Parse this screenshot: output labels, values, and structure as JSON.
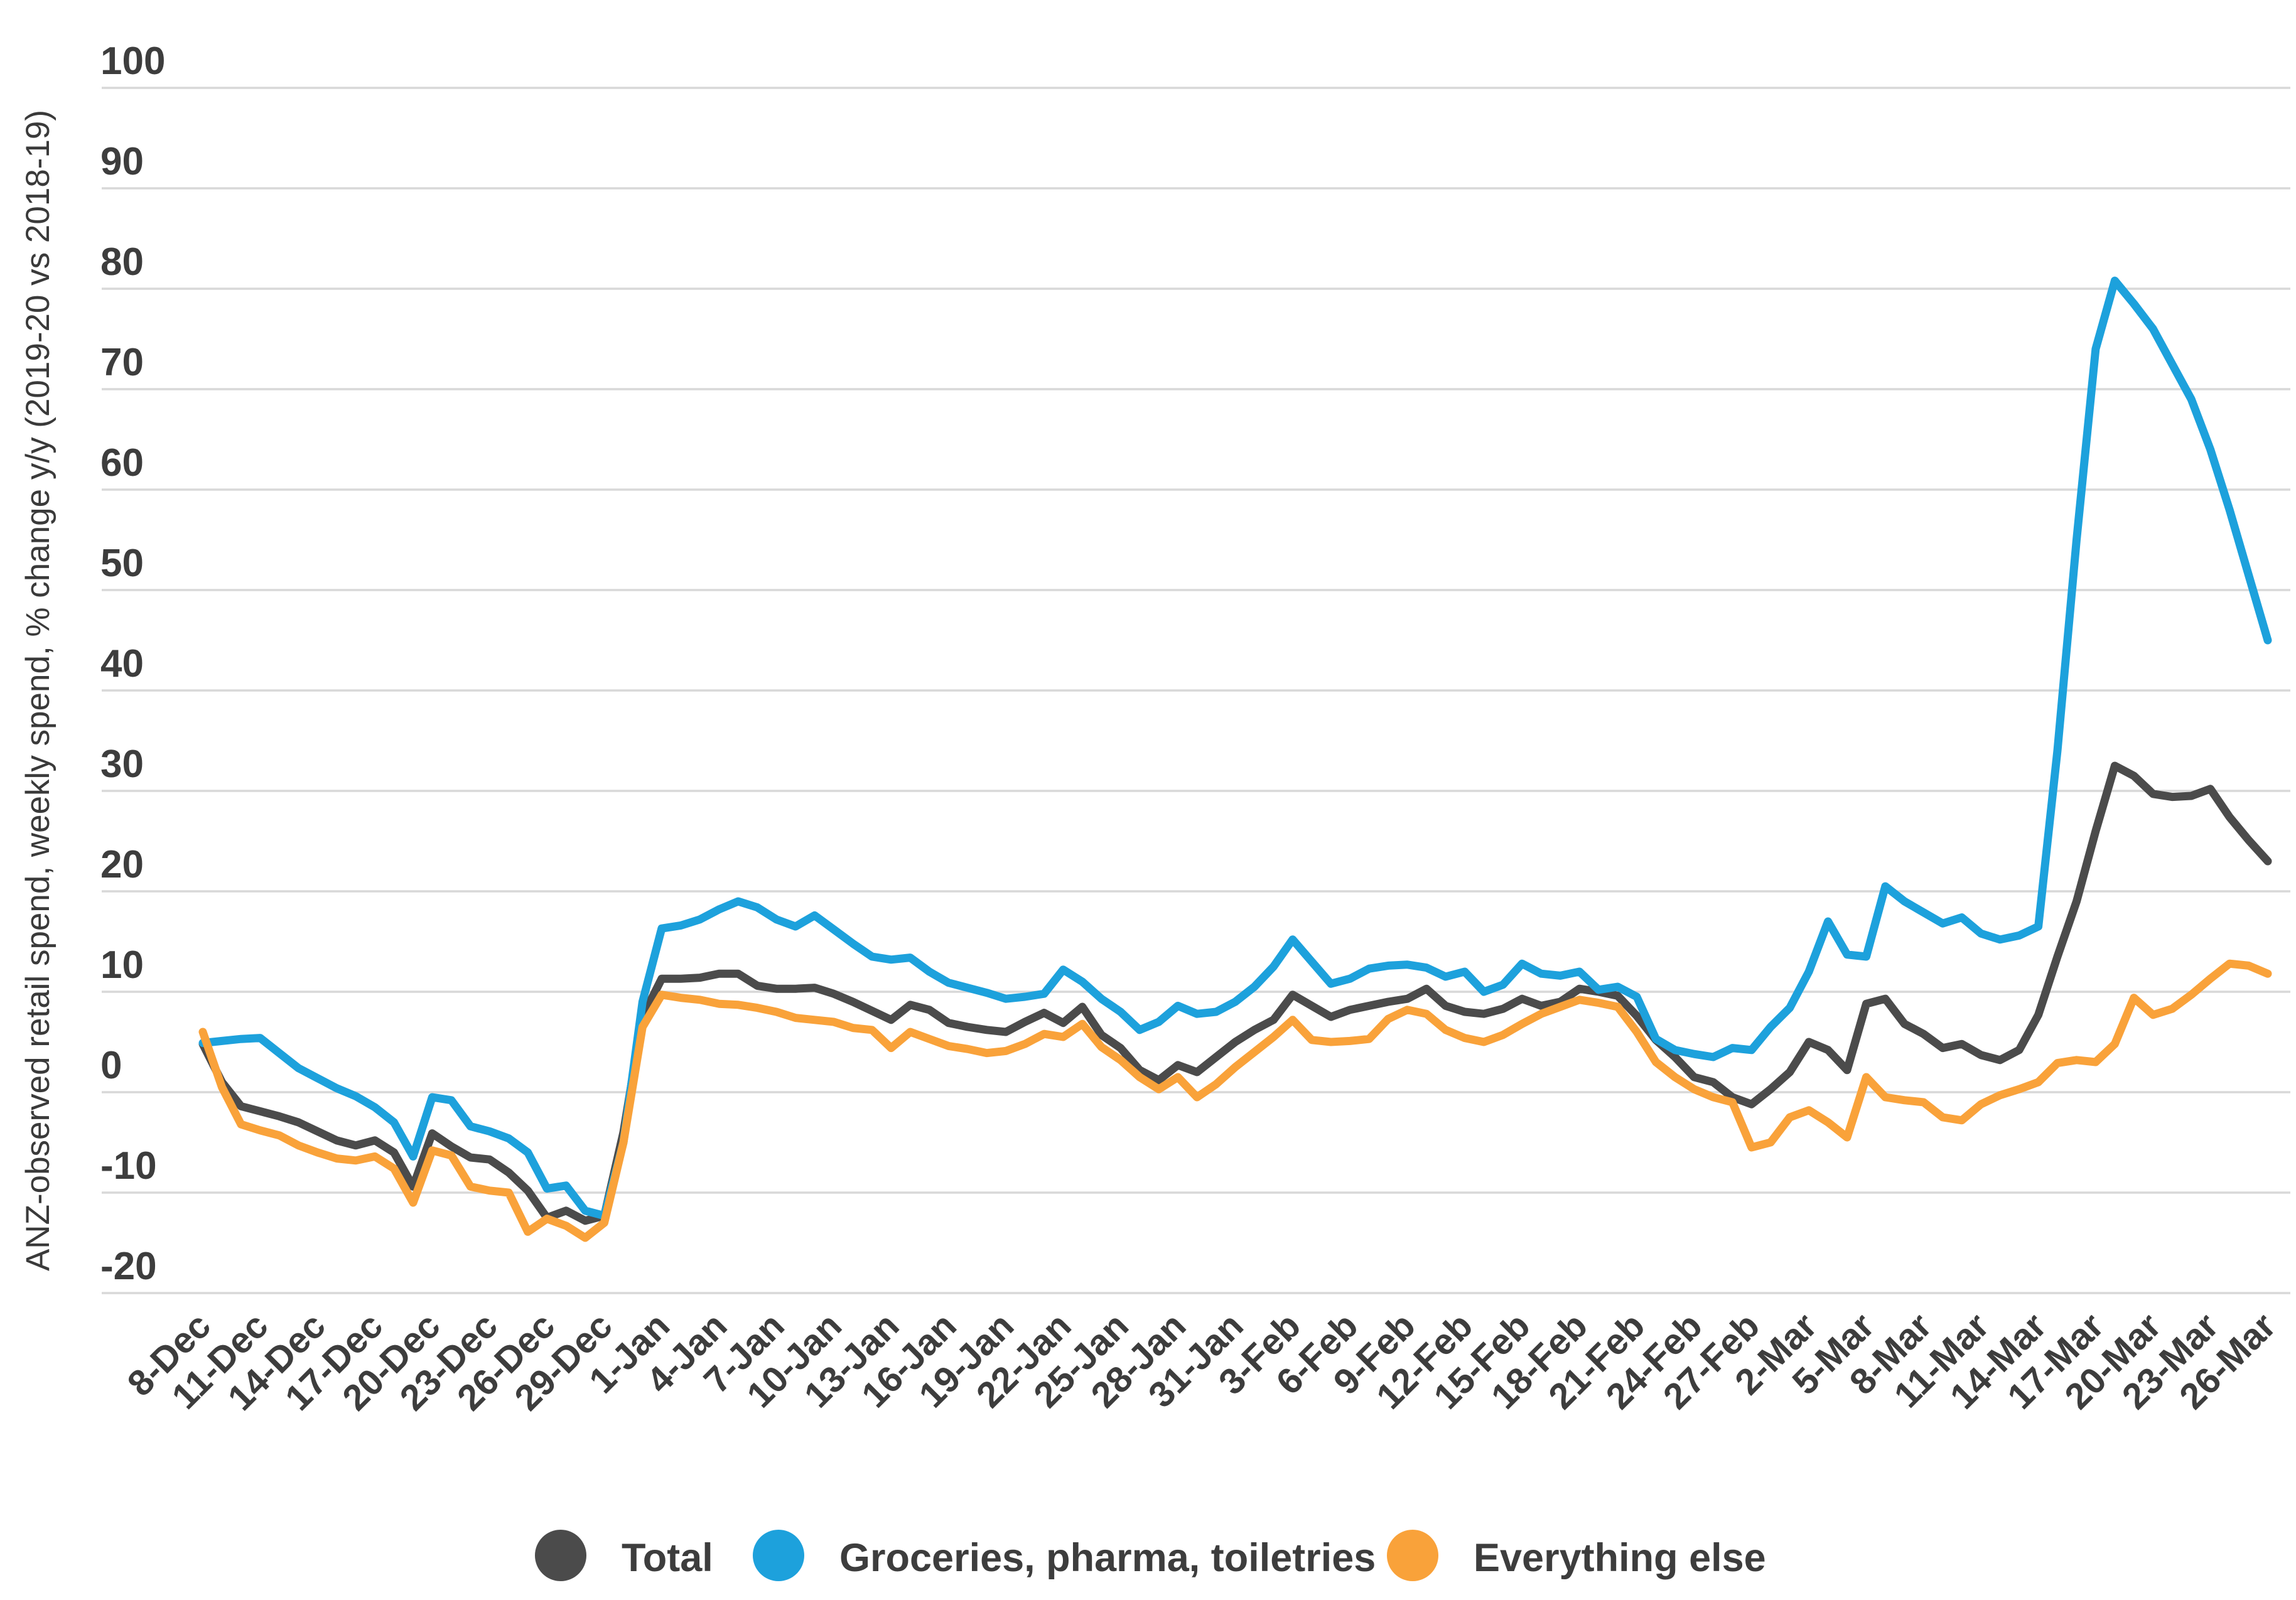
{
  "chart_data": {
    "type": "line",
    "title": "",
    "xlabel": "",
    "ylabel": "ANZ-observed retail spend, weekly spend, % change y/y (2019-20 vs 2018-19)",
    "ylim": [
      -20,
      100
    ],
    "yticks": [
      100,
      90,
      80,
      70,
      60,
      50,
      40,
      30,
      20,
      10,
      0,
      -10,
      -20
    ],
    "grid": "horizontal",
    "legend_position": "bottom",
    "x_tick_labels": [
      "8-Dec",
      "11-Dec",
      "14-Dec",
      "17-Dec",
      "20-Dec",
      "23-Dec",
      "26-Dec",
      "29-Dec",
      "1-Jan",
      "4-Jan",
      "7-Jan",
      "10-Jan",
      "13-Jan",
      "16-Jan",
      "19-Jan",
      "22-Jan",
      "25-Jan",
      "28-Jan",
      "31-Jan",
      "3-Feb",
      "6-Feb",
      "9-Feb",
      "12-Feb",
      "15-Feb",
      "18-Feb",
      "21-Feb",
      "24-Feb",
      "27-Feb",
      "2-Mar",
      "5-Mar",
      "8-Mar",
      "11-Mar",
      "14-Mar",
      "17-Mar",
      "20-Mar",
      "23-Mar",
      "26-Mar"
    ],
    "points_per_tick": 3,
    "x_resolution": "daily",
    "colors": {
      "text": "#3d3d3d",
      "grid": "#d8d8d8",
      "background": "#ffffff"
    },
    "series": [
      {
        "name": "Total",
        "color": "#4b4b4b",
        "values": [
          4.8,
          1.0,
          -1.4,
          -1.9,
          -2.4,
          -3,
          -3.9,
          -4.8,
          -5.3,
          -4.8,
          -6,
          -9.4,
          -4.1,
          -5.4,
          -6.5,
          -6.7,
          -8,
          -9.8,
          -12.5,
          -11.8,
          -12.8,
          -12.3,
          -4,
          7.5,
          11.3,
          11.3,
          11.4,
          11.8,
          11.8,
          10.6,
          10.3,
          10.3,
          10.4,
          9.8,
          9,
          8.1,
          7.2,
          8.7,
          8.2,
          6.9,
          6.5,
          6.2,
          6,
          7,
          7.9,
          6.9,
          8.5,
          5.7,
          4.4,
          2.2,
          1.2,
          2.7,
          2,
          3.5,
          5,
          6.2,
          7.2,
          9.7,
          8.6,
          7.5,
          8.2,
          8.6,
          9,
          9.3,
          10.3,
          8.6,
          8,
          7.8,
          8.3,
          9.3,
          8.6,
          9,
          10.3,
          10,
          9.6,
          7.6,
          5.2,
          3.5,
          1.5,
          1,
          -0.5,
          -1.2,
          0.3,
          2,
          5,
          4.2,
          2.2,
          8.8,
          9.3,
          6.8,
          5.8,
          4.4,
          4.8,
          3.7,
          3.2,
          4.2,
          7.7,
          13.5,
          19,
          26,
          32.5,
          31.5,
          29.7,
          29.4,
          29.5,
          30.2,
          27.4,
          25.1,
          23
        ]
      },
      {
        "name": "Groceries, pharma, toiletries",
        "color": "#1da1dc",
        "values": [
          4.9,
          5.1,
          5.3,
          5.4,
          3.9,
          2.4,
          1.4,
          0.4,
          -0.4,
          -1.5,
          -3,
          -6.4,
          -0.5,
          -0.8,
          -3.4,
          -3.9,
          -4.6,
          -6,
          -9.6,
          -9.3,
          -11.8,
          -12.3,
          -5,
          9,
          16.3,
          16.6,
          17.2,
          18.2,
          19,
          18.4,
          17.2,
          16.5,
          17.6,
          16.2,
          14.8,
          13.5,
          13.2,
          13.4,
          12,
          10.9,
          10.4,
          9.9,
          9.3,
          9.5,
          9.8,
          12.2,
          11,
          9.3,
          8,
          6.2,
          7,
          8.6,
          7.8,
          8,
          9,
          10.5,
          12.5,
          15.2,
          13,
          10.8,
          11.3,
          12.3,
          12.6,
          12.7,
          12.4,
          11.5,
          12,
          10,
          10.7,
          12.8,
          11.8,
          11.6,
          12,
          10.2,
          10.5,
          9.5,
          5.3,
          4.2,
          3.8,
          3.5,
          4.4,
          4.2,
          6.5,
          8.4,
          12,
          17,
          13.7,
          13.5,
          20.5,
          19,
          17.9,
          16.8,
          17.4,
          15.8,
          15.2,
          15.6,
          16.5,
          34,
          55,
          74,
          80.8,
          78.5,
          76,
          72.5,
          69,
          64,
          58,
          51.5,
          45
        ]
      },
      {
        "name": "Everything else",
        "color": "#f9a23a",
        "values": [
          6,
          0.5,
          -3.2,
          -3.8,
          -4.3,
          -5.3,
          -6,
          -6.6,
          -6.8,
          -6.4,
          -7.6,
          -11,
          -5.8,
          -6.3,
          -9.4,
          -9.8,
          -10,
          -13.9,
          -12.6,
          -13.3,
          -14.5,
          -13,
          -5,
          6.5,
          9.7,
          9.4,
          9.2,
          8.8,
          8.7,
          8.4,
          8,
          7.4,
          7.2,
          7,
          6.4,
          6.2,
          4.4,
          6,
          5.3,
          4.6,
          4.3,
          3.9,
          4.1,
          4.8,
          5.8,
          5.5,
          6.8,
          4.5,
          3.2,
          1.5,
          0.3,
          1.5,
          -0.5,
          0.8,
          2.5,
          4,
          5.5,
          7.2,
          5.2,
          5,
          5.1,
          5.3,
          7.3,
          8.2,
          7.8,
          6.2,
          5.4,
          5,
          5.7,
          6.8,
          7.8,
          8.5,
          9.2,
          8.9,
          8.5,
          6,
          3,
          1.5,
          0.3,
          -0.5,
          -1,
          -5.5,
          -5,
          -2.5,
          -1.8,
          -3,
          -4.5,
          1.5,
          -0.5,
          -0.8,
          -1,
          -2.5,
          -2.8,
          -1.2,
          -0.3,
          0.3,
          1,
          2.9,
          3.2,
          3,
          4.8,
          9.4,
          7.7,
          8.3,
          9.7,
          11.3,
          12.8,
          12.6,
          11.8
        ]
      }
    ]
  }
}
